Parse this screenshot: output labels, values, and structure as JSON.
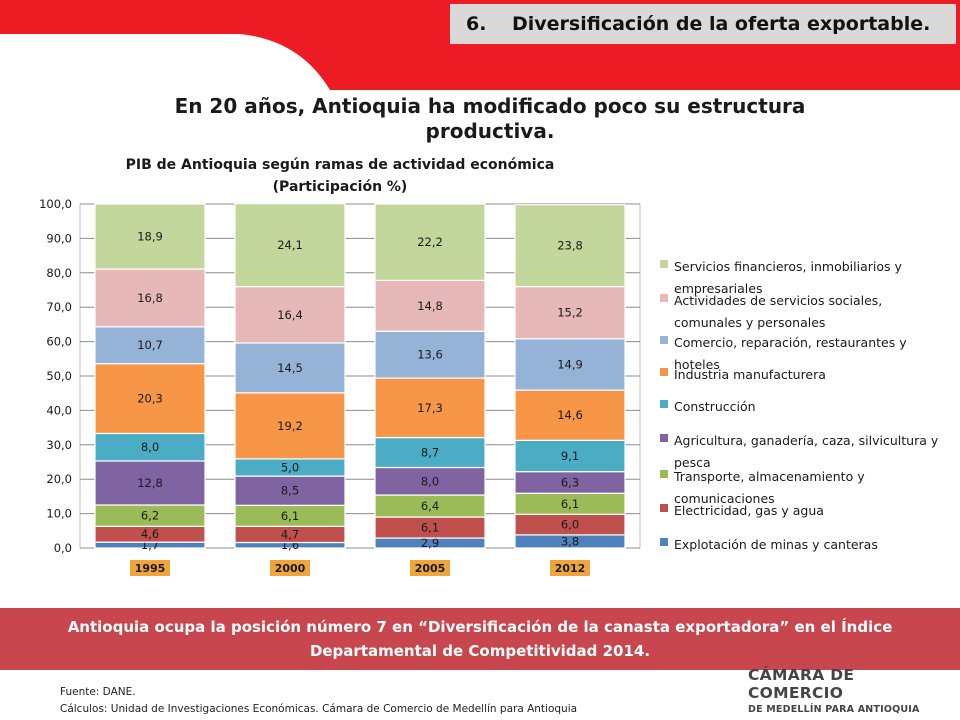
{
  "header": {
    "section_number": "6.",
    "section_title": "Diversificación de la oferta exportable."
  },
  "headline_line1": "En 20 años, Antioquia ha modificado poco su estructura",
  "headline_line2": "productiva.",
  "colors": {
    "header_red": "#ed1c24",
    "bottom_band": "#c8474e",
    "category_label_bg": "#f0a53c"
  },
  "chart_data": {
    "type": "bar",
    "stacked": true,
    "title": "PIB de Antioquia según ramas de actividad económica",
    "subtitle": "(Participación %)",
    "categories": [
      "1995",
      "2000",
      "2005",
      "2012"
    ],
    "ylim": [
      0,
      100
    ],
    "yticks": [
      "0,0",
      "10,0",
      "20,0",
      "30,0",
      "40,0",
      "50,0",
      "60,0",
      "70,0",
      "80,0",
      "90,0",
      "100,0"
    ],
    "grid": true,
    "legend_position": "right",
    "series": [
      {
        "name": "Explotación de minas y canteras",
        "color": "#4f81bd",
        "values": [
          1.7,
          1.6,
          2.9,
          3.8
        ],
        "labels": [
          "1,7",
          "1,6",
          "2,9",
          "3,8"
        ]
      },
      {
        "name": "Electricidad, gas y agua",
        "color": "#c0504d",
        "values": [
          4.6,
          4.7,
          6.1,
          6.0
        ],
        "labels": [
          "4,6",
          "4,7",
          "6,1",
          "6,0"
        ]
      },
      {
        "name": "Transporte, almacenamiento y comunicaciones",
        "color": "#9bbb59",
        "values": [
          6.2,
          6.1,
          6.4,
          6.1
        ],
        "labels": [
          "6,2",
          "6,1",
          "6,4",
          "6,1"
        ]
      },
      {
        "name": "Agricultura, ganadería, caza, silvicultura y pesca",
        "color": "#8064a2",
        "values": [
          12.8,
          8.5,
          8.0,
          6.3
        ],
        "labels": [
          "12,8",
          "8,5",
          "8,0",
          "6,3"
        ]
      },
      {
        "name": "Construcción",
        "color": "#4bacc6",
        "values": [
          8.0,
          5.0,
          8.7,
          9.1
        ],
        "labels": [
          "8,0",
          "5,0",
          "8,7",
          "9,1"
        ]
      },
      {
        "name": "Industria manufacturera",
        "color": "#f79646",
        "values": [
          20.3,
          19.2,
          17.3,
          14.6
        ],
        "labels": [
          "20,3",
          "19,2",
          "17,3",
          "14,6"
        ]
      },
      {
        "name": "Comercio, reparación, restaurantes y hoteles",
        "color": "#95b3d7",
        "values": [
          10.7,
          14.5,
          13.6,
          14.9
        ],
        "labels": [
          "10,7",
          "14,5",
          "13,6",
          "14,9"
        ]
      },
      {
        "name": "Actividades de servicios sociales, comunales y personales",
        "color": "#e6b9b8",
        "values": [
          16.8,
          16.4,
          14.8,
          15.2
        ],
        "labels": [
          "16,8",
          "16,4",
          "14,8",
          "15,2"
        ]
      },
      {
        "name": "Servicios financieros, inmobiliarios y empresariales",
        "color": "#c3d69b",
        "values": [
          18.9,
          24.1,
          22.2,
          23.8
        ],
        "labels": [
          "18,9",
          "24,1",
          "22,2",
          "23,8"
        ]
      }
    ]
  },
  "legend_items": [
    "Servicios financieros, inmobiliarios y empresariales",
    "Actividades de servicios sociales, comunales y personales",
    "Comercio, reparación, restaurantes y hoteles",
    "Industria manufacturera",
    "Construcción",
    "Agricultura, ganadería, caza, silvicultura y pesca",
    "Transporte, almacenamiento y comunicaciones",
    "Electricidad, gas y agua",
    "Explotación de minas y canteras"
  ],
  "bottom_text": "Antioquia ocupa la posición número 7 en “Diversificación de la canasta exportadora” en el Índice Departamental de Competitividad 2014.",
  "source_line1": "Fuente: DANE.",
  "source_line2": "Cálculos: Unidad de Investigaciones Económicas. Cámara de Comercio de Medellín para Antioquia",
  "logo_line1": "CÁMARA DE COMERCIO",
  "logo_line2": "DE MEDELLÍN PARA ANTIOQUIA"
}
